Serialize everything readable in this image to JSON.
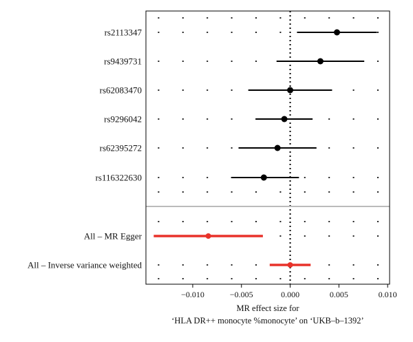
{
  "chart_data": {
    "type": "forest",
    "xlabel_line1": "MR effect size for",
    "xlabel_line2": "‘HLA DR++ monocyte %monocyte’ on ‘UKB–b–1392’",
    "xlim": [
      -0.0148,
      0.0102
    ],
    "xticks": [
      -0.01,
      -0.005,
      0.0,
      0.005,
      0.01
    ],
    "xtick_labels": [
      "−0.010",
      "−0.005",
      "0.000",
      "0.005",
      "0.010"
    ],
    "reference_line": 0,
    "grid": "dotted",
    "colors": {
      "snp": "#000000",
      "summary": "#e8322a",
      "separator": "#bbbbbb"
    },
    "snps": [
      {
        "name": "rs2113347",
        "estimate": 0.0048,
        "lower": 0.0007,
        "upper": 0.0089
      },
      {
        "name": "rs9439731",
        "estimate": 0.0031,
        "lower": -0.0014,
        "upper": 0.0076
      },
      {
        "name": "rs62083470",
        "estimate": 0.0,
        "lower": -0.0043,
        "upper": 0.0043
      },
      {
        "name": "rs9296042",
        "estimate": -0.0006,
        "lower": -0.0035,
        "upper": 0.0023
      },
      {
        "name": "rs62395272",
        "estimate": -0.0013,
        "lower": -0.0053,
        "upper": 0.0027
      },
      {
        "name": "rs116322630",
        "estimate": -0.0027,
        "lower": -0.006,
        "upper": 0.0009
      }
    ],
    "summary": [
      {
        "name": "All – MR Egger",
        "estimate": -0.0084,
        "lower": -0.014,
        "upper": -0.0028
      },
      {
        "name": "All – Inverse variance weighted",
        "estimate": 0.0,
        "lower": -0.0021,
        "upper": 0.0021
      }
    ]
  }
}
